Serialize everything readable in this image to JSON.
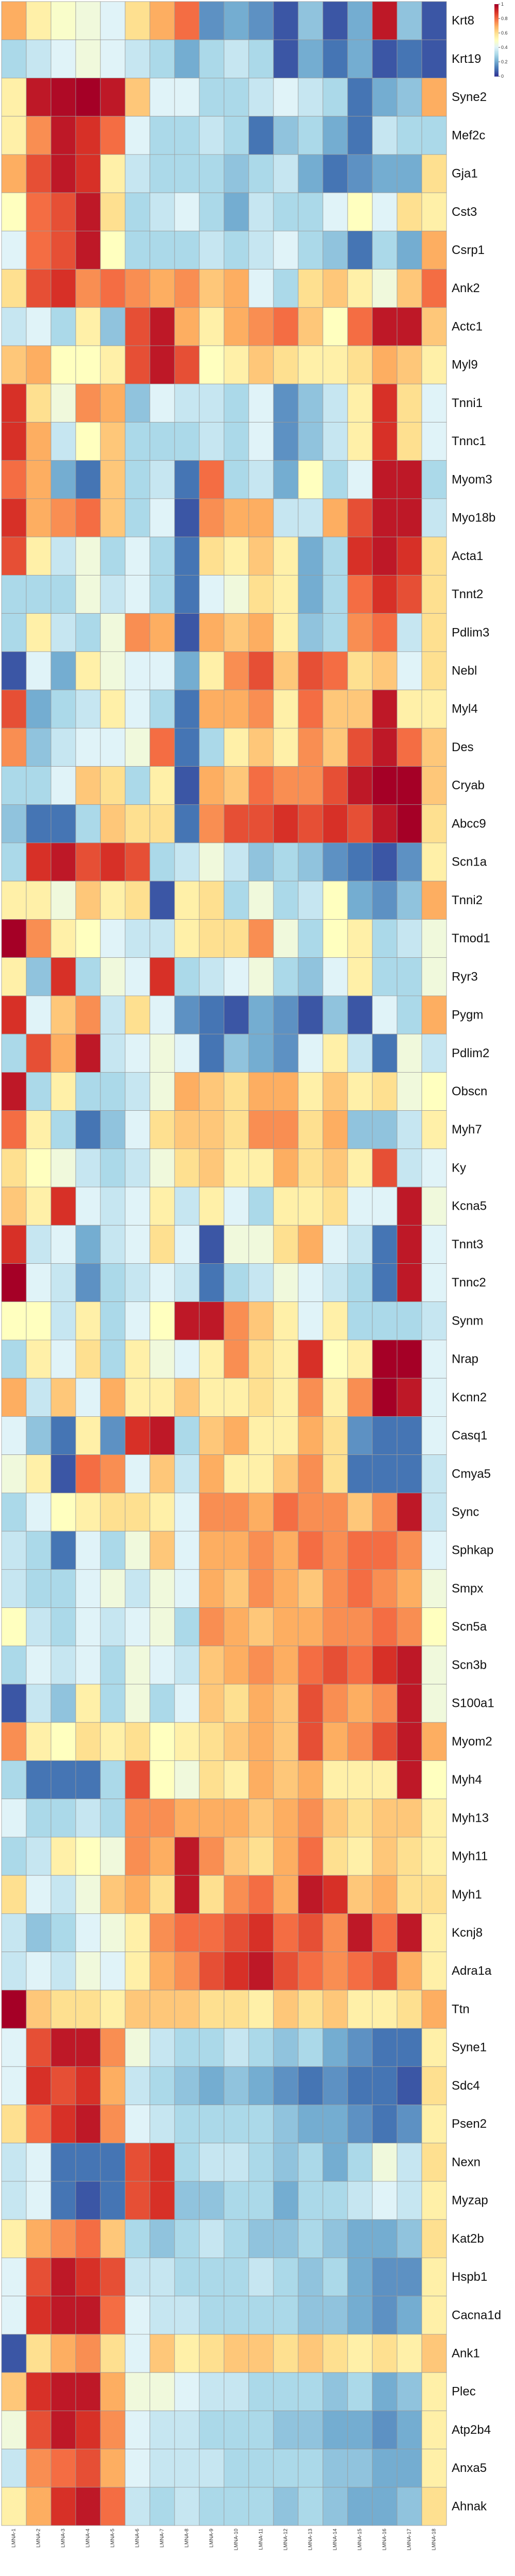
{
  "chart_data": {
    "type": "heatmap",
    "title": "",
    "xlabel": "",
    "ylabel": "",
    "rows": [
      "Krt8",
      "Krt19",
      "Syne2",
      "Mef2c",
      "Gja1",
      "Cst3",
      "Csrp1",
      "Ank2",
      "Actc1",
      "Myl9",
      "Tnni1",
      "Tnnc1",
      "Myom3",
      "Myo18b",
      "Acta1",
      "Tnnt2",
      "Pdlim3",
      "Nebl",
      "Myl4",
      "Des",
      "Cryab",
      "Abcc9",
      "Scn1a",
      "Tnni2",
      "Tmod1",
      "Ryr3",
      "Pygm",
      "Pdlim2",
      "Obscn",
      "Myh7",
      "Ky",
      "Kcna5",
      "Tnnt3",
      "Tnnc2",
      "Synm",
      "Nrap",
      "Kcnn2",
      "Casq1",
      "Cmya5",
      "Sync",
      "Sphkap",
      "Smpx",
      "Scn5a",
      "Scn3b",
      "S100a1",
      "Myom2",
      "Myh4",
      "Myh13",
      "Myh11",
      "Myh1",
      "Kcnj8",
      "Adra1a",
      "Ttn",
      "Syne1",
      "Sdc4",
      "Psen2",
      "Nexn",
      "Myzap",
      "Kat2b",
      "Hspb1",
      "Cacna1d",
      "Ank1",
      "Plec",
      "Atp2b4",
      "Anxa5",
      "Ahnak"
    ],
    "columns": [
      "LMNA-1",
      "LMNA-2",
      "LMNA-3",
      "LMNA-4",
      "LMNA-5",
      "LMNA-6",
      "LMNA-7",
      "LMNA-8",
      "LMNA-9",
      "LMNA-10",
      "LMNA-11",
      "LMNA-12",
      "LMNA-13",
      "LMNA-14",
      "LMNA-15",
      "LMNA-16",
      "LMNA-17",
      "LMNA-18"
    ],
    "colorscale": [
      "#313695",
      "#4575b4",
      "#74add1",
      "#abd9e9",
      "#e0f3f8",
      "#ffffbf",
      "#fee090",
      "#fdae61",
      "#f46d43",
      "#d73027",
      "#a50026"
    ],
    "legend": {
      "position": "top-right",
      "min": 0,
      "max": 1,
      "ticks": [
        0,
        0.2,
        0.4,
        0.6,
        0.8,
        1
      ]
    },
    "grid": true,
    "values": [
      [
        0.7,
        0.55,
        0.48,
        0.45,
        0.4,
        0.6,
        0.7,
        0.8,
        0.15,
        0.2,
        0.15,
        0.05,
        0.25,
        0.05,
        0.2,
        0.95,
        0.25,
        0.05
      ],
      [
        0.3,
        0.35,
        0.4,
        0.45,
        0.4,
        0.35,
        0.3,
        0.2,
        0.3,
        0.35,
        0.3,
        0.05,
        0.2,
        0.1,
        0.2,
        0.05,
        0.1,
        0.05
      ],
      [
        0.55,
        0.95,
        0.98,
        1.0,
        0.95,
        0.65,
        0.4,
        0.4,
        0.3,
        0.3,
        0.35,
        0.4,
        0.35,
        0.3,
        0.1,
        0.2,
        0.25,
        0.7
      ],
      [
        0.55,
        0.75,
        0.95,
        0.9,
        0.8,
        0.4,
        0.3,
        0.3,
        0.35,
        0.3,
        0.1,
        0.25,
        0.3,
        0.2,
        0.1,
        0.35,
        0.3,
        0.3
      ],
      [
        0.7,
        0.85,
        0.95,
        0.9,
        0.55,
        0.35,
        0.3,
        0.3,
        0.3,
        0.25,
        0.3,
        0.35,
        0.2,
        0.1,
        0.15,
        0.2,
        0.2,
        0.6
      ],
      [
        0.5,
        0.8,
        0.85,
        0.95,
        0.6,
        0.3,
        0.35,
        0.4,
        0.3,
        0.2,
        0.35,
        0.3,
        0.3,
        0.4,
        0.5,
        0.4,
        0.6,
        0.55
      ],
      [
        0.4,
        0.8,
        0.85,
        0.95,
        0.5,
        0.3,
        0.3,
        0.3,
        0.35,
        0.3,
        0.35,
        0.4,
        0.3,
        0.25,
        0.1,
        0.3,
        0.2,
        0.7
      ],
      [
        0.6,
        0.85,
        0.9,
        0.75,
        0.8,
        0.75,
        0.7,
        0.75,
        0.65,
        0.7,
        0.4,
        0.3,
        0.6,
        0.65,
        0.55,
        0.45,
        0.65,
        0.8
      ],
      [
        0.35,
        0.4,
        0.3,
        0.55,
        0.25,
        0.85,
        0.95,
        0.7,
        0.55,
        0.7,
        0.75,
        0.8,
        0.65,
        0.5,
        0.8,
        0.95,
        0.95,
        0.65
      ],
      [
        0.65,
        0.7,
        0.5,
        0.5,
        0.55,
        0.85,
        0.95,
        0.85,
        0.5,
        0.55,
        0.65,
        0.6,
        0.55,
        0.55,
        0.6,
        0.7,
        0.65,
        0.55
      ],
      [
        0.9,
        0.6,
        0.45,
        0.75,
        0.7,
        0.25,
        0.4,
        0.35,
        0.35,
        0.3,
        0.4,
        0.15,
        0.25,
        0.35,
        0.55,
        0.9,
        0.6,
        0.4
      ],
      [
        0.9,
        0.7,
        0.35,
        0.5,
        0.65,
        0.3,
        0.3,
        0.3,
        0.35,
        0.3,
        0.4,
        0.15,
        0.25,
        0.35,
        0.55,
        0.9,
        0.6,
        0.4
      ],
      [
        0.8,
        0.7,
        0.2,
        0.1,
        0.65,
        0.3,
        0.35,
        0.1,
        0.8,
        0.3,
        0.35,
        0.2,
        0.5,
        0.3,
        0.4,
        0.95,
        0.95,
        0.3
      ],
      [
        0.9,
        0.7,
        0.75,
        0.8,
        0.65,
        0.3,
        0.4,
        0.05,
        0.75,
        0.7,
        0.7,
        0.35,
        0.35,
        0.7,
        0.85,
        0.95,
        0.95,
        0.35
      ],
      [
        0.85,
        0.55,
        0.35,
        0.45,
        0.3,
        0.4,
        0.3,
        0.1,
        0.6,
        0.55,
        0.65,
        0.55,
        0.2,
        0.3,
        0.9,
        0.95,
        0.9,
        0.6
      ],
      [
        0.3,
        0.3,
        0.3,
        0.45,
        0.35,
        0.4,
        0.3,
        0.1,
        0.4,
        0.45,
        0.6,
        0.55,
        0.2,
        0.3,
        0.8,
        0.9,
        0.85,
        0.6
      ],
      [
        0.3,
        0.55,
        0.35,
        0.3,
        0.45,
        0.75,
        0.7,
        0.05,
        0.7,
        0.65,
        0.7,
        0.55,
        0.25,
        0.3,
        0.75,
        0.8,
        0.35,
        0.6
      ],
      [
        0.05,
        0.4,
        0.2,
        0.55,
        0.45,
        0.4,
        0.4,
        0.2,
        0.55,
        0.75,
        0.85,
        0.65,
        0.85,
        0.8,
        0.6,
        0.65,
        0.4,
        0.6
      ],
      [
        0.85,
        0.2,
        0.3,
        0.35,
        0.55,
        0.4,
        0.3,
        0.1,
        0.7,
        0.7,
        0.75,
        0.55,
        0.8,
        0.65,
        0.65,
        0.95,
        0.55,
        0.55
      ],
      [
        0.75,
        0.25,
        0.35,
        0.4,
        0.4,
        0.45,
        0.8,
        0.1,
        0.3,
        0.55,
        0.65,
        0.55,
        0.75,
        0.65,
        0.85,
        0.95,
        0.8,
        0.65
      ],
      [
        0.3,
        0.3,
        0.4,
        0.65,
        0.6,
        0.3,
        0.55,
        0.05,
        0.7,
        0.65,
        0.8,
        0.75,
        0.75,
        0.85,
        0.95,
        1.0,
        1.0,
        0.65
      ],
      [
        0.25,
        0.1,
        0.1,
        0.3,
        0.65,
        0.6,
        0.6,
        0.1,
        0.75,
        0.85,
        0.85,
        0.9,
        0.85,
        0.9,
        0.85,
        0.95,
        1.0,
        0.6
      ],
      [
        0.3,
        0.9,
        0.95,
        0.85,
        0.9,
        0.85,
        0.3,
        0.35,
        0.45,
        0.35,
        0.25,
        0.3,
        0.25,
        0.15,
        0.1,
        0.05,
        0.15,
        0.55
      ],
      [
        0.55,
        0.55,
        0.45,
        0.65,
        0.55,
        0.6,
        0.05,
        0.55,
        0.6,
        0.3,
        0.45,
        0.3,
        0.35,
        0.5,
        0.2,
        0.15,
        0.25,
        0.7
      ],
      [
        1.0,
        0.75,
        0.55,
        0.5,
        0.4,
        0.35,
        0.35,
        0.55,
        0.6,
        0.6,
        0.75,
        0.45,
        0.3,
        0.5,
        0.55,
        0.3,
        0.35,
        0.45
      ],
      [
        0.55,
        0.25,
        0.9,
        0.3,
        0.45,
        0.4,
        0.9,
        0.3,
        0.35,
        0.4,
        0.45,
        0.3,
        0.25,
        0.4,
        0.55,
        0.3,
        0.3,
        0.45
      ],
      [
        0.9,
        0.4,
        0.65,
        0.75,
        0.35,
        0.6,
        0.4,
        0.15,
        0.1,
        0.05,
        0.2,
        0.15,
        0.05,
        0.25,
        0.05,
        0.4,
        0.3,
        0.7
      ],
      [
        0.3,
        0.85,
        0.7,
        0.95,
        0.35,
        0.4,
        0.45,
        0.4,
        0.1,
        0.25,
        0.2,
        0.15,
        0.4,
        0.55,
        0.35,
        0.1,
        0.45,
        0.35
      ],
      [
        0.95,
        0.3,
        0.55,
        0.3,
        0.3,
        0.35,
        0.45,
        0.7,
        0.65,
        0.6,
        0.7,
        0.7,
        0.55,
        0.65,
        0.55,
        0.6,
        0.45,
        0.5
      ],
      [
        0.8,
        0.55,
        0.3,
        0.1,
        0.25,
        0.4,
        0.6,
        0.65,
        0.65,
        0.6,
        0.75,
        0.75,
        0.6,
        0.7,
        0.25,
        0.25,
        0.35,
        0.55
      ],
      [
        0.6,
        0.5,
        0.45,
        0.35,
        0.3,
        0.35,
        0.45,
        0.6,
        0.65,
        0.55,
        0.55,
        0.7,
        0.6,
        0.65,
        0.55,
        0.85,
        0.35,
        0.4
      ],
      [
        0.65,
        0.55,
        0.9,
        0.4,
        0.35,
        0.4,
        0.55,
        0.35,
        0.55,
        0.4,
        0.3,
        0.55,
        0.55,
        0.6,
        0.4,
        0.4,
        0.95,
        0.45
      ],
      [
        0.9,
        0.35,
        0.4,
        0.2,
        0.35,
        0.4,
        0.6,
        0.4,
        0.05,
        0.45,
        0.45,
        0.6,
        0.7,
        0.4,
        0.35,
        0.1,
        0.95,
        0.4
      ],
      [
        1.0,
        0.4,
        0.35,
        0.15,
        0.3,
        0.35,
        0.4,
        0.35,
        0.1,
        0.3,
        0.35,
        0.45,
        0.4,
        0.35,
        0.3,
        0.1,
        0.95,
        0.4
      ],
      [
        0.5,
        0.5,
        0.35,
        0.55,
        0.3,
        0.4,
        0.5,
        0.95,
        0.95,
        0.75,
        0.65,
        0.55,
        0.4,
        0.55,
        0.3,
        0.3,
        0.3,
        0.35
      ],
      [
        0.3,
        0.55,
        0.4,
        0.6,
        0.3,
        0.55,
        0.45,
        0.4,
        0.55,
        0.75,
        0.6,
        0.55,
        0.9,
        0.5,
        0.55,
        1.0,
        1.0,
        0.4
      ],
      [
        0.7,
        0.35,
        0.65,
        0.4,
        0.7,
        0.55,
        0.55,
        0.65,
        0.55,
        0.55,
        0.6,
        0.55,
        0.75,
        0.55,
        0.75,
        1.0,
        0.95,
        0.4
      ],
      [
        0.4,
        0.25,
        0.1,
        0.55,
        0.15,
        0.9,
        0.95,
        0.3,
        0.65,
        0.7,
        0.55,
        0.55,
        0.7,
        0.6,
        0.15,
        0.1,
        0.1,
        0.4
      ],
      [
        0.45,
        0.55,
        0.05,
        0.8,
        0.75,
        0.4,
        0.65,
        0.35,
        0.7,
        0.55,
        0.55,
        0.65,
        0.75,
        0.6,
        0.1,
        0.1,
        0.1,
        0.35
      ],
      [
        0.3,
        0.4,
        0.5,
        0.55,
        0.6,
        0.6,
        0.55,
        0.4,
        0.75,
        0.75,
        0.7,
        0.8,
        0.75,
        0.75,
        0.65,
        0.75,
        0.95,
        0.35
      ],
      [
        0.35,
        0.3,
        0.1,
        0.4,
        0.3,
        0.45,
        0.65,
        0.4,
        0.7,
        0.7,
        0.75,
        0.7,
        0.8,
        0.75,
        0.8,
        0.8,
        0.75,
        0.4
      ],
      [
        0.35,
        0.3,
        0.3,
        0.4,
        0.45,
        0.35,
        0.45,
        0.4,
        0.7,
        0.65,
        0.75,
        0.7,
        0.65,
        0.75,
        0.8,
        0.75,
        0.7,
        0.45
      ],
      [
        0.5,
        0.35,
        0.3,
        0.4,
        0.35,
        0.4,
        0.45,
        0.3,
        0.75,
        0.7,
        0.65,
        0.7,
        0.7,
        0.75,
        0.75,
        0.8,
        0.75,
        0.5
      ],
      [
        0.3,
        0.4,
        0.35,
        0.4,
        0.3,
        0.45,
        0.4,
        0.35,
        0.65,
        0.7,
        0.75,
        0.7,
        0.8,
        0.85,
        0.8,
        0.9,
        0.95,
        0.45
      ],
      [
        0.05,
        0.35,
        0.25,
        0.55,
        0.3,
        0.45,
        0.3,
        0.4,
        0.65,
        0.6,
        0.7,
        0.65,
        0.85,
        0.75,
        0.7,
        0.75,
        0.95,
        0.45
      ],
      [
        0.75,
        0.55,
        0.5,
        0.6,
        0.55,
        0.6,
        0.5,
        0.55,
        0.6,
        0.65,
        0.7,
        0.65,
        0.85,
        0.7,
        0.75,
        0.85,
        0.95,
        0.7
      ],
      [
        0.3,
        0.1,
        0.1,
        0.1,
        0.3,
        0.85,
        0.5,
        0.45,
        0.6,
        0.55,
        0.7,
        0.65,
        0.7,
        0.55,
        0.55,
        0.55,
        0.95,
        0.5
      ],
      [
        0.4,
        0.3,
        0.3,
        0.35,
        0.3,
        0.75,
        0.75,
        0.7,
        0.7,
        0.7,
        0.65,
        0.7,
        0.75,
        0.65,
        0.6,
        0.65,
        0.65,
        0.55
      ],
      [
        0.3,
        0.35,
        0.55,
        0.5,
        0.45,
        0.75,
        0.7,
        0.95,
        0.75,
        0.65,
        0.6,
        0.7,
        0.8,
        0.6,
        0.55,
        0.65,
        0.6,
        0.55
      ],
      [
        0.6,
        0.4,
        0.35,
        0.45,
        0.65,
        0.7,
        0.6,
        0.95,
        0.6,
        0.75,
        0.8,
        0.7,
        0.95,
        0.9,
        0.65,
        0.7,
        0.6,
        0.6
      ],
      [
        0.35,
        0.25,
        0.3,
        0.4,
        0.45,
        0.55,
        0.75,
        0.8,
        0.8,
        0.85,
        0.9,
        0.8,
        0.85,
        0.75,
        0.95,
        0.8,
        0.95,
        0.55
      ],
      [
        0.35,
        0.4,
        0.35,
        0.45,
        0.4,
        0.55,
        0.7,
        0.75,
        0.85,
        0.9,
        0.95,
        0.85,
        0.8,
        0.75,
        0.8,
        0.85,
        0.7,
        0.55
      ],
      [
        1.0,
        0.65,
        0.6,
        0.6,
        0.55,
        0.65,
        0.65,
        0.65,
        0.6,
        0.6,
        0.55,
        0.65,
        0.6,
        0.65,
        0.55,
        0.55,
        0.6,
        0.7
      ],
      [
        0.4,
        0.85,
        0.95,
        0.95,
        0.75,
        0.45,
        0.35,
        0.3,
        0.3,
        0.35,
        0.3,
        0.25,
        0.3,
        0.2,
        0.15,
        0.1,
        0.1,
        0.55
      ],
      [
        0.4,
        0.9,
        0.85,
        0.9,
        0.7,
        0.35,
        0.3,
        0.25,
        0.2,
        0.25,
        0.2,
        0.15,
        0.1,
        0.15,
        0.1,
        0.1,
        0.05,
        0.6
      ],
      [
        0.6,
        0.8,
        0.9,
        0.95,
        0.75,
        0.4,
        0.35,
        0.3,
        0.3,
        0.3,
        0.3,
        0.25,
        0.2,
        0.2,
        0.15,
        0.1,
        0.15,
        0.55
      ],
      [
        0.35,
        0.4,
        0.1,
        0.1,
        0.1,
        0.85,
        0.9,
        0.3,
        0.35,
        0.35,
        0.3,
        0.25,
        0.3,
        0.2,
        0.3,
        0.45,
        0.35,
        0.6
      ],
      [
        0.35,
        0.4,
        0.1,
        0.05,
        0.1,
        0.85,
        0.9,
        0.25,
        0.25,
        0.3,
        0.3,
        0.2,
        0.3,
        0.3,
        0.35,
        0.4,
        0.35,
        0.55
      ],
      [
        0.55,
        0.7,
        0.75,
        0.8,
        0.65,
        0.3,
        0.25,
        0.3,
        0.35,
        0.3,
        0.25,
        0.25,
        0.3,
        0.25,
        0.2,
        0.2,
        0.25,
        0.6
      ],
      [
        0.4,
        0.85,
        0.95,
        0.9,
        0.85,
        0.35,
        0.35,
        0.3,
        0.3,
        0.3,
        0.35,
        0.3,
        0.25,
        0.3,
        0.2,
        0.15,
        0.15,
        0.55
      ],
      [
        0.4,
        0.9,
        0.95,
        0.95,
        0.8,
        0.4,
        0.35,
        0.35,
        0.3,
        0.3,
        0.3,
        0.3,
        0.25,
        0.25,
        0.2,
        0.15,
        0.2,
        0.55
      ],
      [
        0.05,
        0.6,
        0.7,
        0.75,
        0.6,
        0.4,
        0.65,
        0.55,
        0.6,
        0.65,
        0.65,
        0.6,
        0.65,
        0.6,
        0.55,
        0.6,
        0.55,
        0.65
      ],
      [
        0.65,
        0.9,
        0.95,
        0.95,
        0.7,
        0.45,
        0.45,
        0.4,
        0.35,
        0.35,
        0.3,
        0.3,
        0.3,
        0.25,
        0.3,
        0.2,
        0.25,
        0.55
      ],
      [
        0.45,
        0.85,
        0.95,
        0.9,
        0.75,
        0.4,
        0.35,
        0.35,
        0.3,
        0.3,
        0.3,
        0.25,
        0.25,
        0.2,
        0.2,
        0.15,
        0.2,
        0.55
      ],
      [
        0.35,
        0.75,
        0.8,
        0.85,
        0.7,
        0.4,
        0.35,
        0.35,
        0.35,
        0.3,
        0.3,
        0.3,
        0.3,
        0.25,
        0.25,
        0.2,
        0.2,
        0.55
      ],
      [
        0.55,
        0.7,
        0.9,
        0.95,
        0.8,
        0.35,
        0.3,
        0.35,
        0.3,
        0.3,
        0.3,
        0.25,
        0.3,
        0.25,
        0.2,
        0.2,
        0.25,
        0.6
      ]
    ]
  }
}
